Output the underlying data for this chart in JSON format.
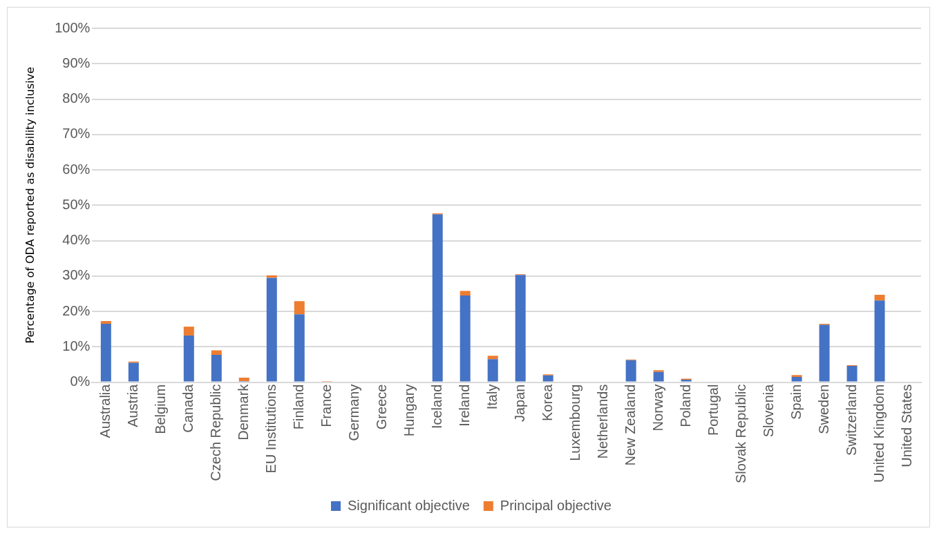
{
  "chart_data": {
    "type": "bar",
    "stacked": true,
    "ylabel": "Percentage of ODA reported as disability inclusive",
    "categories": [
      "Australia",
      "Austria",
      "Belgium",
      "Canada",
      "Czech Republic",
      "Denmark",
      "EU Institutions",
      "Finland",
      "France",
      "Germany",
      "Greece",
      "Hungary",
      "Iceland",
      "Ireland",
      "Italy",
      "Japan",
      "Korea",
      "Luxembourg",
      "Netherlands",
      "New Zealand",
      "Norway",
      "Poland",
      "Portugal",
      "Slovak Republic",
      "Slovenia",
      "Spain",
      "Sweden",
      "Switzerland",
      "United Kingdom",
      "United States"
    ],
    "series": [
      {
        "name": "Significant objective",
        "color": "#4472c4",
        "values": [
          16.5,
          5.5,
          0,
          13.2,
          7.7,
          0.3,
          29.5,
          19.2,
          0,
          0,
          0,
          0,
          47.4,
          24.5,
          6.5,
          30.3,
          1.9,
          0,
          0,
          6.2,
          2.9,
          0.7,
          0,
          0,
          0,
          1.5,
          16.2,
          4.6,
          23.1,
          0
        ]
      },
      {
        "name": "Principal objective",
        "color": "#ed7d31",
        "values": [
          0.8,
          0.3,
          0,
          2.5,
          1.3,
          1.0,
          0.7,
          3.7,
          0.3,
          0,
          0,
          0,
          0.3,
          1.3,
          1.0,
          0.2,
          0.3,
          0,
          0,
          0.2,
          0.5,
          0.3,
          0,
          0,
          0,
          0.5,
          0.3,
          0.2,
          1.6,
          0
        ]
      }
    ],
    "ylim": [
      0,
      100
    ],
    "yticks": [
      {
        "value": 0,
        "label": "0%"
      },
      {
        "value": 10,
        "label": "10%"
      },
      {
        "value": 20,
        "label": "20%"
      },
      {
        "value": 30,
        "label": "30%"
      },
      {
        "value": 40,
        "label": "40%"
      },
      {
        "value": 50,
        "label": "50%"
      },
      {
        "value": 60,
        "label": "60%"
      },
      {
        "value": 70,
        "label": "70%"
      },
      {
        "value": 80,
        "label": "80%"
      },
      {
        "value": 90,
        "label": "90%"
      },
      {
        "value": 100,
        "label": "100%"
      }
    ],
    "grid": "y",
    "legend": "bottom"
  }
}
